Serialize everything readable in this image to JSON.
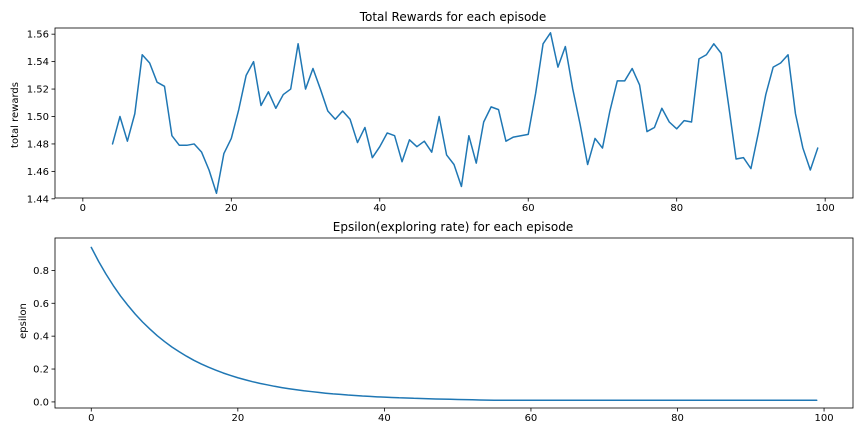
{
  "figure": {
    "background": "#ffffff",
    "line_color": "#1f77b4"
  },
  "chart_data": [
    {
      "type": "line",
      "title": "Total Rewards for each episode",
      "xlabel": "",
      "ylabel": "total rewards",
      "xlim": [
        -3.75,
        103.75
      ],
      "ylim": [
        1.4406,
        1.5645
      ],
      "xticks": [
        0,
        20,
        40,
        60,
        80,
        100
      ],
      "xtick_labels": [
        "0",
        "20",
        "40",
        "60",
        "80",
        "100"
      ],
      "yticks": [
        1.44,
        1.46,
        1.48,
        1.5,
        1.52,
        1.54,
        1.56
      ],
      "ytick_labels": [
        "1.44",
        "1.46",
        "1.48",
        "1.50",
        "1.52",
        "1.54",
        "1.56"
      ],
      "grid": false,
      "series": [
        {
          "x": [
            4,
            5,
            6,
            7,
            8,
            9,
            10,
            11,
            12,
            13,
            14,
            15,
            16,
            17,
            18,
            19,
            20,
            21,
            22,
            23,
            24,
            25,
            26,
            27,
            28,
            29,
            30,
            31,
            32,
            33,
            34,
            35,
            36,
            37,
            38,
            39,
            40,
            41,
            42,
            43,
            44,
            45,
            46,
            47,
            48,
            49,
            50,
            51,
            52,
            53,
            54,
            55,
            56,
            57,
            58,
            59,
            60,
            61,
            62,
            63,
            64,
            65,
            66,
            67,
            68,
            69,
            70,
            71,
            72,
            73,
            74,
            75,
            76,
            77,
            78,
            79,
            80,
            81,
            82,
            83,
            84,
            85,
            86,
            87,
            88,
            89,
            90,
            91,
            92,
            93,
            94,
            95,
            96,
            97,
            98,
            99
          ],
          "values": [
            1.48,
            1.5,
            1.482,
            1.502,
            1.545,
            1.539,
            1.525,
            1.522,
            1.486,
            1.479,
            1.479,
            1.48,
            1.474,
            1.461,
            1.444,
            1.473,
            1.484,
            1.505,
            1.53,
            1.54,
            1.508,
            1.518,
            1.506,
            1.516,
            1.52,
            1.553,
            1.52,
            1.535,
            1.52,
            1.504,
            1.498,
            1.504,
            1.498,
            1.481,
            1.492,
            1.47,
            1.478,
            1.488,
            1.486,
            1.467,
            1.483,
            1.478,
            1.482,
            1.474,
            1.5,
            1.472,
            1.465,
            1.449,
            1.486,
            1.466,
            1.496,
            1.507,
            1.505,
            1.482,
            1.485,
            1.486,
            1.487,
            1.517,
            1.553,
            1.561,
            1.536,
            1.551,
            1.52,
            1.494,
            1.465,
            1.484,
            1.477,
            1.504,
            1.526,
            1.526,
            1.535,
            1.523,
            1.489,
            1.492,
            1.506,
            1.496,
            1.491,
            1.497,
            1.496,
            1.542,
            1.545,
            1.553,
            1.546,
            1.508,
            1.469,
            1.47,
            1.462,
            1.488,
            1.516,
            1.536,
            1.539,
            1.545,
            1.502,
            1.477,
            1.461,
            1.477
          ]
        }
      ]
    },
    {
      "type": "line",
      "title": "Epsilon(exploring rate) for each episode",
      "xlabel": "",
      "ylabel": "epsilon",
      "xlim": [
        -4.95,
        103.95
      ],
      "ylim": [
        -0.037,
        0.997
      ],
      "xticks": [
        0,
        20,
        40,
        60,
        80,
        100
      ],
      "xtick_labels": [
        "0",
        "20",
        "40",
        "60",
        "80",
        "100"
      ],
      "yticks": [
        0.0,
        0.2,
        0.4,
        0.6,
        0.8
      ],
      "ytick_labels": [
        "0.0",
        "0.2",
        "0.4",
        "0.6",
        "0.8"
      ],
      "grid": false,
      "series": [
        {
          "x": [
            0,
            1,
            2,
            3,
            4,
            5,
            6,
            7,
            8,
            9,
            10,
            11,
            12,
            13,
            14,
            15,
            16,
            17,
            18,
            19,
            20,
            21,
            22,
            23,
            24,
            25,
            26,
            27,
            28,
            29,
            30,
            31,
            32,
            33,
            34,
            35,
            36,
            37,
            38,
            39,
            40,
            41,
            42,
            43,
            44,
            45,
            46,
            47,
            48,
            49,
            50,
            51,
            52,
            53,
            54,
            55,
            56,
            57,
            58,
            59,
            60,
            61,
            62,
            63,
            64,
            65,
            66,
            67,
            68,
            69,
            70,
            71,
            72,
            73,
            74,
            75,
            76,
            77,
            78,
            79,
            80,
            81,
            82,
            83,
            84,
            85,
            86,
            87,
            88,
            89,
            90,
            91,
            92,
            93,
            94,
            95,
            96,
            97,
            98,
            99
          ],
          "values": [
            0.94,
            0.855,
            0.778,
            0.708,
            0.644,
            0.587,
            0.534,
            0.486,
            0.443,
            0.403,
            0.367,
            0.334,
            0.305,
            0.278,
            0.253,
            0.231,
            0.211,
            0.193,
            0.176,
            0.161,
            0.147,
            0.135,
            0.123,
            0.113,
            0.104,
            0.095,
            0.087,
            0.08,
            0.074,
            0.068,
            0.063,
            0.058,
            0.053,
            0.049,
            0.046,
            0.042,
            0.039,
            0.036,
            0.034,
            0.031,
            0.029,
            0.027,
            0.025,
            0.024,
            0.022,
            0.021,
            0.019,
            0.018,
            0.017,
            0.016,
            0.015,
            0.014,
            0.013,
            0.012,
            0.011,
            0.01,
            0.01,
            0.01,
            0.01,
            0.01,
            0.01,
            0.01,
            0.01,
            0.01,
            0.01,
            0.01,
            0.01,
            0.01,
            0.01,
            0.01,
            0.01,
            0.01,
            0.01,
            0.01,
            0.01,
            0.01,
            0.01,
            0.01,
            0.01,
            0.01,
            0.01,
            0.01,
            0.01,
            0.01,
            0.01,
            0.01,
            0.01,
            0.01,
            0.01,
            0.01,
            0.01,
            0.01,
            0.01,
            0.01,
            0.01,
            0.01,
            0.01,
            0.01,
            0.01,
            0.01
          ]
        }
      ]
    }
  ]
}
